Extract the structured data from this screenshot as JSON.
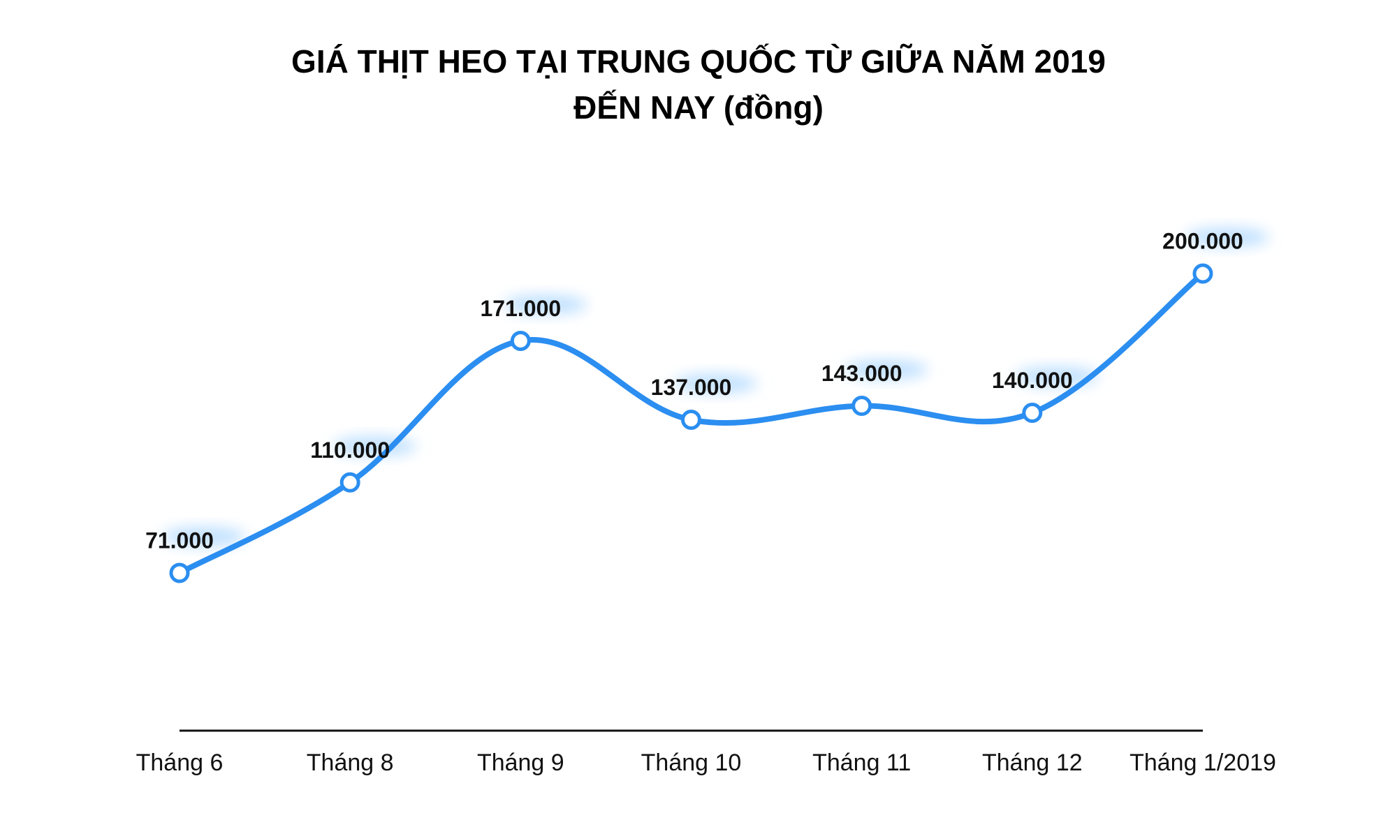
{
  "chart_data": {
    "type": "line",
    "title": [
      "GIÁ THỊT HEO TẠI TRUNG QUỐC TỪ GIỮA NĂM 2019",
      "ĐẾN NAY (đồng)"
    ],
    "categories": [
      "Tháng 6",
      "Tháng 8",
      "Tháng 9",
      "Tháng 10",
      "Tháng 11",
      "Tháng 12",
      "Tháng 1/2019"
    ],
    "values": [
      71000,
      110000,
      171000,
      137000,
      143000,
      140000,
      200000
    ],
    "value_labels": [
      "71.000",
      "110.000",
      "171.000",
      "137.000",
      "143.000",
      "140.000",
      "200.000"
    ],
    "color": "#2b8ef0"
  }
}
